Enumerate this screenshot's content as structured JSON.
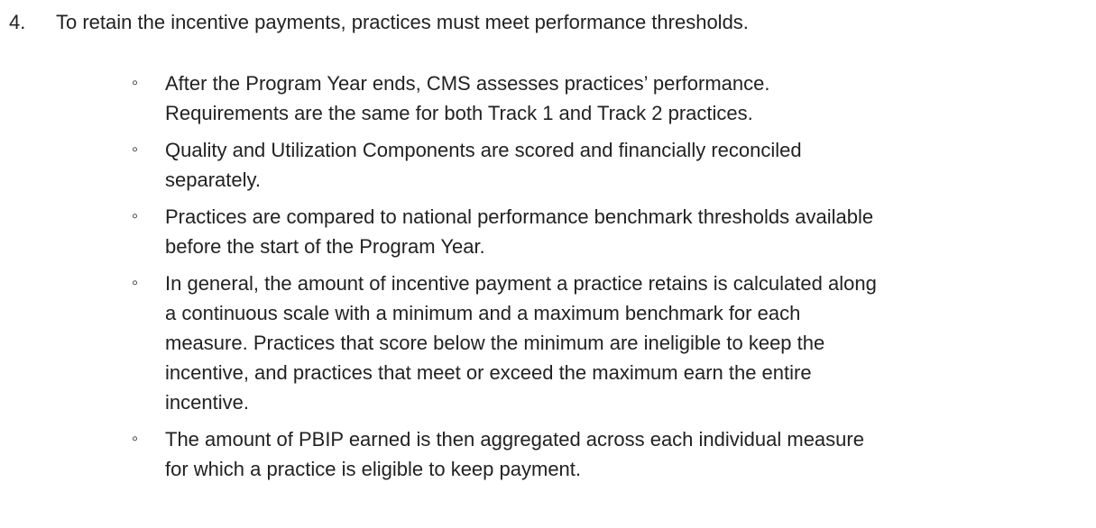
{
  "list": {
    "number": "4.",
    "heading": "To retain the incentive payments, practices must meet performance thresholds.",
    "bullets": [
      [
        "After the Program Year ends, CMS assesses practices’ performance.",
        "Requirements are the same for both Track 1 and Track 2 practices."
      ],
      [
        "Quality and Utilization Components are scored and financially reconciled",
        "separately."
      ],
      [
        "Practices are compared to national performance benchmark thresholds available",
        "before the start of the Program Year."
      ],
      [
        "In general, the amount of incentive payment a practice retains is calculated along",
        "a continuous scale with a minimum and a maximum benchmark for each",
        "measure. Practices that score below the minimum are ineligible to keep the",
        "incentive, and practices that meet or exceed the maximum earn the entire",
        "incentive."
      ],
      [
        "The amount of PBIP earned is then aggregated across each individual measure",
        "for which a practice is eligible to keep payment."
      ]
    ]
  }
}
